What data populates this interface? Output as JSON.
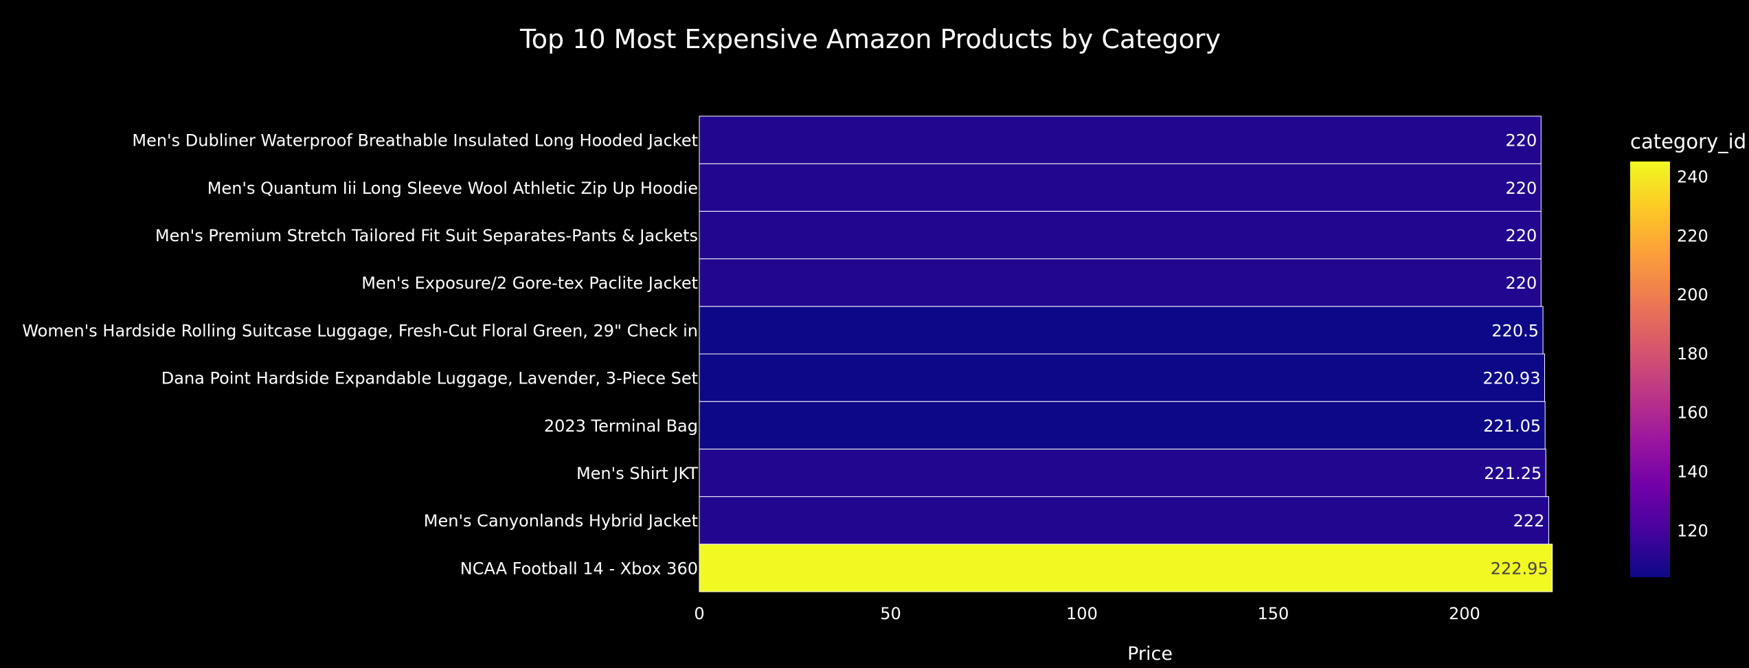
{
  "chart_data": {
    "type": "bar",
    "orientation": "horizontal",
    "title": "Top 10 Most Expensive Amazon Products by Category",
    "xlabel": "Price",
    "ylabel": "",
    "xlim": [
      0,
      223
    ],
    "xticks": [
      0,
      50,
      100,
      150,
      200
    ],
    "grid": false,
    "background": "#000000",
    "categories": [
      "NCAA Football 14 - Xbox 360",
      "Men's Canyonlands Hybrid Jacket",
      "Men's Shirt JKT",
      "2023 Terminal Bag",
      "Dana Point Hardside Expandable Luggage, Lavender, 3-Piece Set",
      "Women's Hardside Rolling Suitcase Luggage, Fresh-Cut Floral Green, 29\" Check in",
      "Men's Exposure/2 Gore-tex Paclite Jacket",
      "Men's Premium Stretch Tailored Fit Suit Separates-Pants & Jackets",
      "Men's Quantum Iii Long Sleeve Wool Athletic Zip Up Hoodie",
      "Men's Dubliner Waterproof Breathable Insulated Long Hooded Jacket"
    ],
    "values": [
      222.95,
      222,
      221.25,
      221.05,
      220.93,
      220.5,
      220,
      220,
      220,
      220
    ],
    "labels": [
      "222.95",
      "222",
      "221.25",
      "221.05",
      "220.93",
      "220.5",
      "220",
      "220",
      "220",
      "220"
    ],
    "category_id": [
      245,
      110,
      110,
      104,
      104,
      104,
      110,
      110,
      110,
      110
    ],
    "colorbar": {
      "title": "category_id",
      "colorscale": "Plasma",
      "range": [
        104,
        245
      ],
      "ticks": [
        120,
        140,
        160,
        180,
        200,
        220,
        240
      ]
    }
  }
}
